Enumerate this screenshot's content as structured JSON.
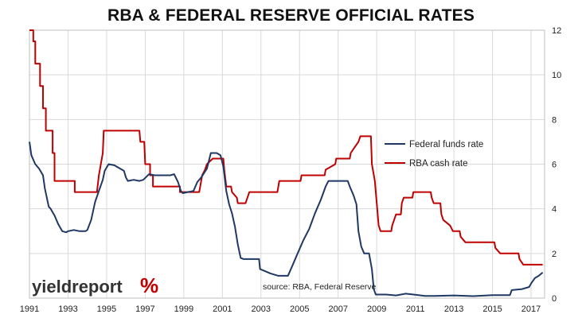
{
  "chart_data": {
    "type": "line",
    "title": "RBA & FEDERAL RESERVE OFFICIAL RATES",
    "xlabel": "",
    "ylabel": "",
    "xlim": [
      1991,
      2017.7
    ],
    "ylim": [
      0,
      12
    ],
    "x_ticks": [
      "1991",
      "1993",
      "1995",
      "1997",
      "1999",
      "2001",
      "2003",
      "2005",
      "2007",
      "2009",
      "2011",
      "2013",
      "2015",
      "2017"
    ],
    "y_ticks": [
      "0",
      "2",
      "4",
      "6",
      "8",
      "10",
      "12"
    ],
    "y_axis_position": "right",
    "grid": true,
    "legend_position": "center-right",
    "series": [
      {
        "name": "Federal funds rate",
        "color": "#1f3864",
        "points": [
          [
            1991.0,
            7.0
          ],
          [
            1991.1,
            6.4
          ],
          [
            1991.3,
            6.0
          ],
          [
            1991.5,
            5.8
          ],
          [
            1991.7,
            5.5
          ],
          [
            1991.8,
            4.9
          ],
          [
            1991.9,
            4.5
          ],
          [
            1992.0,
            4.1
          ],
          [
            1992.1,
            4.0
          ],
          [
            1992.3,
            3.7
          ],
          [
            1992.5,
            3.3
          ],
          [
            1992.7,
            3.0
          ],
          [
            1992.9,
            2.95
          ],
          [
            1993.0,
            3.0
          ],
          [
            1993.3,
            3.05
          ],
          [
            1993.6,
            3.0
          ],
          [
            1993.9,
            3.0
          ],
          [
            1994.0,
            3.05
          ],
          [
            1994.2,
            3.5
          ],
          [
            1994.4,
            4.3
          ],
          [
            1994.6,
            4.8
          ],
          [
            1994.8,
            5.3
          ],
          [
            1994.9,
            5.7
          ],
          [
            1995.1,
            6.0
          ],
          [
            1995.4,
            5.95
          ],
          [
            1995.7,
            5.8
          ],
          [
            1995.9,
            5.7
          ],
          [
            1996.0,
            5.4
          ],
          [
            1996.1,
            5.25
          ],
          [
            1996.4,
            5.3
          ],
          [
            1996.7,
            5.25
          ],
          [
            1996.9,
            5.3
          ],
          [
            1997.2,
            5.55
          ],
          [
            1997.5,
            5.5
          ],
          [
            1997.8,
            5.5
          ],
          [
            1998.0,
            5.5
          ],
          [
            1998.3,
            5.5
          ],
          [
            1998.5,
            5.55
          ],
          [
            1998.7,
            5.2
          ],
          [
            1998.85,
            4.8
          ],
          [
            1998.95,
            4.7
          ],
          [
            1999.2,
            4.75
          ],
          [
            1999.5,
            4.8
          ],
          [
            1999.7,
            5.2
          ],
          [
            1999.9,
            5.4
          ],
          [
            2000.2,
            5.8
          ],
          [
            2000.4,
            6.5
          ],
          [
            2000.7,
            6.5
          ],
          [
            2000.9,
            6.4
          ],
          [
            2001.05,
            5.9
          ],
          [
            2001.2,
            4.8
          ],
          [
            2001.35,
            4.2
          ],
          [
            2001.5,
            3.8
          ],
          [
            2001.65,
            3.2
          ],
          [
            2001.8,
            2.4
          ],
          [
            2001.95,
            1.8
          ],
          [
            2002.1,
            1.75
          ],
          [
            2002.5,
            1.75
          ],
          [
            2002.9,
            1.75
          ],
          [
            2002.95,
            1.3
          ],
          [
            2003.1,
            1.25
          ],
          [
            2003.5,
            1.1
          ],
          [
            2003.9,
            1.0
          ],
          [
            2004.4,
            1.0
          ],
          [
            2004.6,
            1.4
          ],
          [
            2004.9,
            2.0
          ],
          [
            2005.2,
            2.6
          ],
          [
            2005.5,
            3.1
          ],
          [
            2005.8,
            3.8
          ],
          [
            2006.1,
            4.4
          ],
          [
            2006.35,
            5.0
          ],
          [
            2006.5,
            5.25
          ],
          [
            2007.5,
            5.25
          ],
          [
            2007.6,
            5.0
          ],
          [
            2007.8,
            4.6
          ],
          [
            2007.95,
            4.2
          ],
          [
            2008.05,
            3.0
          ],
          [
            2008.2,
            2.3
          ],
          [
            2008.35,
            2.0
          ],
          [
            2008.6,
            2.0
          ],
          [
            2008.75,
            1.3
          ],
          [
            2008.85,
            0.4
          ],
          [
            2008.95,
            0.16
          ],
          [
            2009.5,
            0.16
          ],
          [
            2010.0,
            0.12
          ],
          [
            2010.5,
            0.2
          ],
          [
            2011.0,
            0.15
          ],
          [
            2011.5,
            0.1
          ],
          [
            2012.0,
            0.1
          ],
          [
            2013.0,
            0.12
          ],
          [
            2014.0,
            0.09
          ],
          [
            2015.0,
            0.13
          ],
          [
            2015.9,
            0.13
          ],
          [
            2016.0,
            0.36
          ],
          [
            2016.5,
            0.4
          ],
          [
            2016.9,
            0.5
          ],
          [
            2017.0,
            0.65
          ],
          [
            2017.2,
            0.9
          ],
          [
            2017.4,
            1.0
          ],
          [
            2017.6,
            1.15
          ]
        ]
      },
      {
        "name": "RBA cash rate",
        "color": "#c00000",
        "points": [
          [
            1991.0,
            12.0
          ],
          [
            1991.2,
            12.0
          ],
          [
            1991.2,
            11.5
          ],
          [
            1991.3,
            11.5
          ],
          [
            1991.3,
            10.5
          ],
          [
            1991.55,
            10.5
          ],
          [
            1991.55,
            9.5
          ],
          [
            1991.7,
            9.5
          ],
          [
            1991.7,
            8.5
          ],
          [
            1991.85,
            8.5
          ],
          [
            1991.85,
            7.5
          ],
          [
            1992.2,
            7.5
          ],
          [
            1992.2,
            6.5
          ],
          [
            1992.3,
            6.5
          ],
          [
            1992.3,
            5.25
          ],
          [
            1993.35,
            5.25
          ],
          [
            1993.35,
            4.75
          ],
          [
            1994.5,
            4.75
          ],
          [
            1994.6,
            5.5
          ],
          [
            1994.8,
            6.5
          ],
          [
            1994.85,
            7.5
          ],
          [
            1996.7,
            7.5
          ],
          [
            1996.75,
            7.0
          ],
          [
            1996.95,
            7.0
          ],
          [
            1997.0,
            6.0
          ],
          [
            1997.25,
            6.0
          ],
          [
            1997.25,
            5.5
          ],
          [
            1997.4,
            5.5
          ],
          [
            1997.4,
            5.0
          ],
          [
            1998.8,
            5.0
          ],
          [
            1998.8,
            4.75
          ],
          [
            1999.8,
            4.75
          ],
          [
            1999.85,
            5.0
          ],
          [
            1999.95,
            5.5
          ],
          [
            2000.1,
            5.75
          ],
          [
            2000.2,
            6.0
          ],
          [
            2000.5,
            6.25
          ],
          [
            2001.05,
            6.25
          ],
          [
            2001.1,
            5.75
          ],
          [
            2001.2,
            5.0
          ],
          [
            2001.45,
            5.0
          ],
          [
            2001.5,
            4.75
          ],
          [
            2001.75,
            4.5
          ],
          [
            2001.8,
            4.25
          ],
          [
            2002.2,
            4.25
          ],
          [
            2002.3,
            4.5
          ],
          [
            2002.4,
            4.75
          ],
          [
            2003.85,
            4.75
          ],
          [
            2003.9,
            5.0
          ],
          [
            2003.95,
            5.25
          ],
          [
            2005.05,
            5.25
          ],
          [
            2005.1,
            5.5
          ],
          [
            2006.3,
            5.5
          ],
          [
            2006.35,
            5.75
          ],
          [
            2006.85,
            6.0
          ],
          [
            2006.9,
            6.25
          ],
          [
            2007.6,
            6.25
          ],
          [
            2007.65,
            6.5
          ],
          [
            2007.85,
            6.75
          ],
          [
            2008.05,
            7.0
          ],
          [
            2008.15,
            7.25
          ],
          [
            2008.7,
            7.25
          ],
          [
            2008.75,
            6.0
          ],
          [
            2008.9,
            5.25
          ],
          [
            2009.0,
            4.25
          ],
          [
            2009.1,
            3.25
          ],
          [
            2009.2,
            3.0
          ],
          [
            2009.75,
            3.0
          ],
          [
            2009.8,
            3.25
          ],
          [
            2009.9,
            3.5
          ],
          [
            2010.0,
            3.75
          ],
          [
            2010.25,
            3.75
          ],
          [
            2010.3,
            4.25
          ],
          [
            2010.4,
            4.5
          ],
          [
            2010.85,
            4.5
          ],
          [
            2010.9,
            4.75
          ],
          [
            2011.8,
            4.75
          ],
          [
            2011.85,
            4.5
          ],
          [
            2011.95,
            4.25
          ],
          [
            2012.3,
            4.25
          ],
          [
            2012.35,
            3.75
          ],
          [
            2012.45,
            3.5
          ],
          [
            2012.8,
            3.25
          ],
          [
            2012.95,
            3.0
          ],
          [
            2013.3,
            3.0
          ],
          [
            2013.35,
            2.75
          ],
          [
            2013.6,
            2.5
          ],
          [
            2015.1,
            2.5
          ],
          [
            2015.15,
            2.25
          ],
          [
            2015.4,
            2.0
          ],
          [
            2016.35,
            2.0
          ],
          [
            2016.4,
            1.75
          ],
          [
            2016.6,
            1.5
          ],
          [
            2017.6,
            1.5
          ]
        ]
      }
    ],
    "annotations": [
      "source: RBA, Federal Reserve"
    ]
  },
  "logo": {
    "text": "yieldreport",
    "symbol": "%",
    "symbol_colors": [
      "#2e8b3d",
      "#c00000"
    ]
  }
}
